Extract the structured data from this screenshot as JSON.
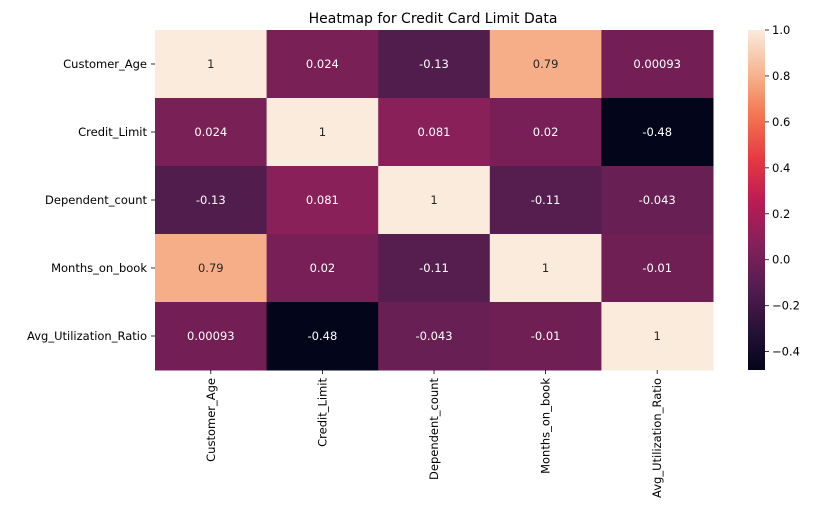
{
  "chart_data": {
    "type": "heatmap",
    "title": "Heatmap for Credit Card Limit Data",
    "xlabel": "",
    "ylabel": "",
    "row_labels": [
      "Customer_Age",
      "Credit_Limit",
      "Dependent_count",
      "Months_on_book",
      "Avg_Utilization_Ratio"
    ],
    "col_labels": [
      "Customer_Age",
      "Credit_Limit",
      "Dependent_count",
      "Months_on_book",
      "Avg_Utilization_Ratio"
    ],
    "values": [
      [
        1,
        0.024,
        -0.13,
        0.79,
        0.00093
      ],
      [
        0.024,
        1,
        0.081,
        0.02,
        -0.48
      ],
      [
        -0.13,
        0.081,
        1,
        -0.11,
        -0.043
      ],
      [
        0.79,
        0.02,
        -0.11,
        1,
        -0.01
      ],
      [
        0.00093,
        -0.48,
        -0.043,
        -0.01,
        1
      ]
    ],
    "annotations": [
      [
        "1",
        "0.024",
        "-0.13",
        "0.79",
        "0.00093"
      ],
      [
        "0.024",
        "1",
        "0.081",
        "0.02",
        "-0.48"
      ],
      [
        "-0.13",
        "0.081",
        "1",
        "-0.11",
        "-0.043"
      ],
      [
        "0.79",
        "0.02",
        "-0.11",
        "1",
        "-0.01"
      ],
      [
        "0.00093",
        "-0.48",
        "-0.043",
        "-0.01",
        "1"
      ]
    ],
    "colormap": "rocket",
    "vmin": -0.48,
    "vmax": 1.0,
    "colorbar": {
      "ticks": [
        1.0,
        0.8,
        0.6,
        0.4,
        0.2,
        0.0,
        -0.2,
        -0.4
      ],
      "tick_labels": [
        "1.0",
        "0.8",
        "0.6",
        "0.4",
        "0.2",
        "0.0",
        "−0.2",
        "−0.4"
      ],
      "placement": "right"
    },
    "grid": false
  }
}
